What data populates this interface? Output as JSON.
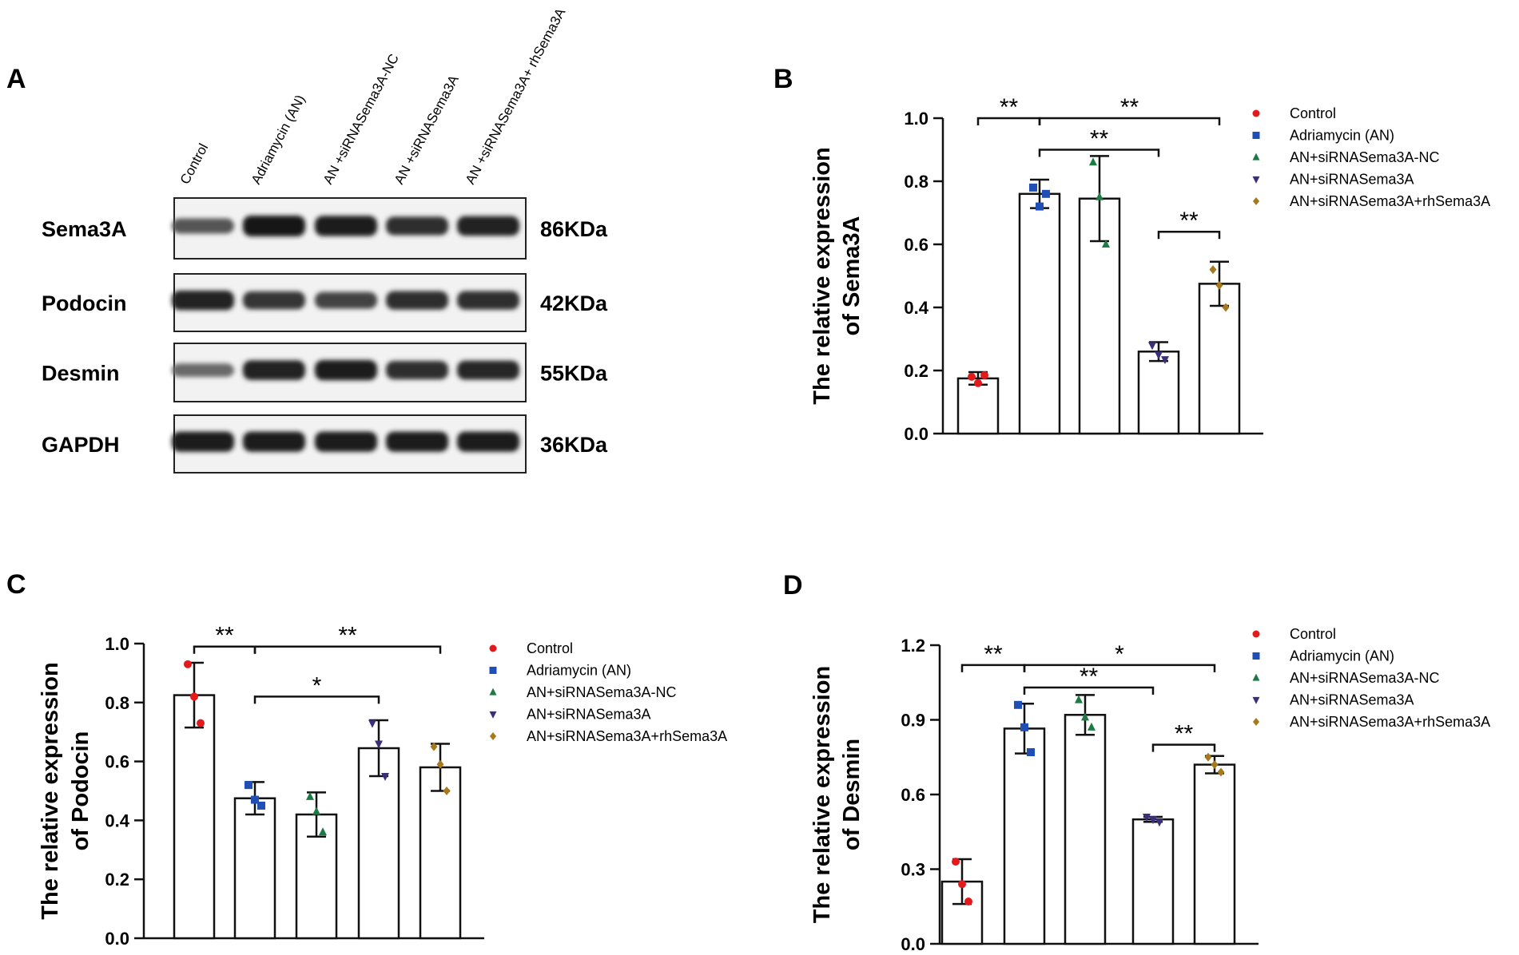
{
  "panel_a": {
    "label": "A",
    "lanes": [
      "Control",
      "Adriamycin (AN)",
      "AN +siRNASema3A-NC",
      "AN +siRNASema3A",
      "AN +siRNASema3A+ rhSema3A"
    ],
    "blots": [
      {
        "protein": "Sema3A",
        "size": "86KDa",
        "intensity": [
          0.5,
          1.0,
          0.95,
          0.8,
          0.9
        ]
      },
      {
        "protein": "Podocin",
        "size": "42KDa",
        "intensity": [
          0.9,
          0.75,
          0.65,
          0.8,
          0.8
        ]
      },
      {
        "protein": "Desmin",
        "size": "55KDa",
        "intensity": [
          0.35,
          0.9,
          0.95,
          0.8,
          0.85
        ]
      },
      {
        "protein": "GAPDH",
        "size": "36KDa",
        "intensity": [
          0.95,
          0.95,
          0.95,
          0.95,
          0.95
        ]
      }
    ]
  },
  "colors": {
    "control": "#e31a1c",
    "an": "#1f4fb5",
    "nc": "#1e7a45",
    "si": "#3b2f7a",
    "rh": "#a6791c"
  },
  "chart_data": [
    {
      "panel": "B",
      "type": "bar",
      "ylabel_line1": "The relative expression",
      "ylabel_line2": "of Sema3A",
      "ylim": [
        0,
        1.0
      ],
      "yticks": [
        "0.0",
        "0.2",
        "0.4",
        "0.6",
        "0.8",
        "1.0"
      ],
      "tick_values": [
        0,
        0.2,
        0.4,
        0.6,
        0.8,
        1.0
      ],
      "categories": [
        "Control",
        "Adriamycin (AN)",
        "AN+siRNASema3A-NC",
        "AN+siRNASema3A",
        "AN+siRNASema3A+rhSema3A"
      ],
      "values": [
        0.175,
        0.76,
        0.745,
        0.26,
        0.475
      ],
      "errors": [
        0.02,
        0.045,
        0.135,
        0.03,
        0.07
      ],
      "points": [
        [
          0.18,
          0.16,
          0.185
        ],
        [
          0.78,
          0.72,
          0.76
        ],
        [
          0.86,
          0.75,
          0.6
        ],
        [
          0.28,
          0.25,
          0.235
        ],
        [
          0.52,
          0.47,
          0.4
        ]
      ],
      "legend": [
        "Control",
        "Adriamycin (AN)",
        "AN+siRNASema3A-NC",
        "AN+siRNASema3A",
        "AN+siRNASema3A+rhSema3A"
      ],
      "significance": [
        {
          "from": 0,
          "to": 1,
          "level": 1.0,
          "label": "**"
        },
        {
          "from": 1,
          "to": 4,
          "level": 1.0,
          "label": "**"
        },
        {
          "from": 1,
          "to": 3,
          "level": 0.9,
          "label": "**"
        },
        {
          "from": 3,
          "to": 4,
          "level": 0.64,
          "label": "**"
        }
      ]
    },
    {
      "panel": "C",
      "type": "bar",
      "ylabel_line1": "The relative expression",
      "ylabel_line2": "of Podocin",
      "ylim": [
        0,
        1.0
      ],
      "yticks": [
        "0.0",
        "0.2",
        "0.4",
        "0.6",
        "0.8",
        "1.0"
      ],
      "tick_values": [
        0,
        0.2,
        0.4,
        0.6,
        0.8,
        1.0
      ],
      "categories": [
        "Control",
        "Adriamycin (AN)",
        "AN+siRNASema3A-NC",
        "AN+siRNASema3A",
        "AN+siRNASema3A+rhSema3A"
      ],
      "values": [
        0.825,
        0.475,
        0.42,
        0.645,
        0.58
      ],
      "errors": [
        0.11,
        0.055,
        0.075,
        0.095,
        0.08
      ],
      "points": [
        [
          0.93,
          0.82,
          0.73
        ],
        [
          0.52,
          0.47,
          0.45
        ],
        [
          0.48,
          0.43,
          0.36
        ],
        [
          0.73,
          0.66,
          0.55
        ],
        [
          0.65,
          0.59,
          0.5
        ]
      ],
      "legend": [
        "Control",
        "Adriamycin (AN)",
        "AN+siRNASema3A-NC",
        "AN+siRNASema3A",
        "AN+siRNASema3A+rhSema3A"
      ],
      "significance": [
        {
          "from": 0,
          "to": 1,
          "level": 0.99,
          "label": "**"
        },
        {
          "from": 1,
          "to": 4,
          "level": 0.99,
          "label": "**"
        },
        {
          "from": 1,
          "to": 3,
          "level": 0.82,
          "label": "*"
        }
      ]
    },
    {
      "panel": "D",
      "type": "bar",
      "ylabel_line1": "The relative expression",
      "ylabel_line2": "of Desmin",
      "ylim": [
        0,
        1.2
      ],
      "yticks": [
        "0.0",
        "0.3",
        "0.6",
        "0.9",
        "1.2"
      ],
      "tick_values": [
        0,
        0.3,
        0.6,
        0.9,
        1.2
      ],
      "categories": [
        "Control",
        "Adriamycin (AN)",
        "AN+siRNASema3A-NC",
        "AN+siRNASema3A",
        "AN+siRNASema3A+rhSema3A"
      ],
      "values": [
        0.25,
        0.865,
        0.92,
        0.5,
        0.72
      ],
      "errors": [
        0.09,
        0.1,
        0.08,
        0.01,
        0.035
      ],
      "points": [
        [
          0.33,
          0.24,
          0.17
        ],
        [
          0.96,
          0.87,
          0.77
        ],
        [
          0.98,
          0.91,
          0.87
        ],
        [
          0.51,
          0.5,
          0.49
        ],
        [
          0.75,
          0.72,
          0.69
        ]
      ],
      "legend": [
        "Control",
        "Adriamycin (AN)",
        "AN+siRNASema3A-NC",
        "AN+siRNASema3A",
        "AN+siRNASema3A+rhSema3A"
      ],
      "significance": [
        {
          "from": 0,
          "to": 1,
          "level": 1.12,
          "label": "**"
        },
        {
          "from": 1,
          "to": 4,
          "level": 1.12,
          "label": "*"
        },
        {
          "from": 1,
          "to": 3,
          "level": 1.03,
          "label": "**"
        },
        {
          "from": 3,
          "to": 4,
          "level": 0.8,
          "label": "**"
        }
      ]
    }
  ]
}
